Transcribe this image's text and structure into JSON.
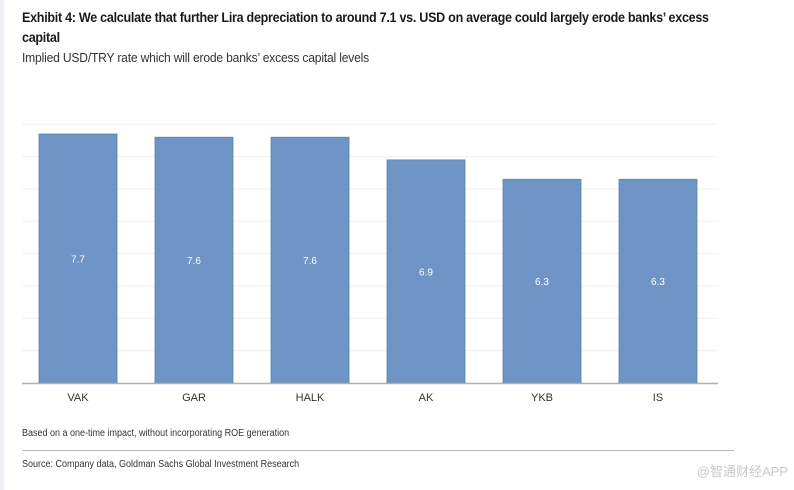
{
  "header": {
    "title": "Exhibit 4: We calculate that further Lira depreciation to around 7.1 vs. USD on average could largely erode banks’ excess capital",
    "subtitle": "Implied USD/TRY rate which will erode banks’ excess capital levels"
  },
  "footer": {
    "note": "Based on a one-time impact, without incorporating ROE generation",
    "source": "Source: Company data, Goldman Sachs Global Investment Research",
    "watermark": "@智通财经APP"
  },
  "colors": {
    "bar": "#6f95c6",
    "bar_edge": "#5b80b3",
    "label": "#ffffff",
    "axis": "#b0b0b0",
    "grid": "#f0f0f0"
  },
  "chart_data": {
    "type": "bar",
    "title": "Implied USD/TRY rate which will erode banks’ excess capital levels",
    "xlabel": "",
    "ylabel": "",
    "categories": [
      "VAK",
      "GAR",
      "HALK",
      "AK",
      "YKB",
      "IS"
    ],
    "values": [
      7.7,
      7.6,
      7.6,
      6.9,
      6.3,
      6.3
    ],
    "value_labels": [
      "7.7",
      "7.6",
      "7.6",
      "6.9",
      "6.3",
      "6.3"
    ],
    "ylim": [
      0,
      8.5
    ],
    "grid": true,
    "legend": "none"
  }
}
